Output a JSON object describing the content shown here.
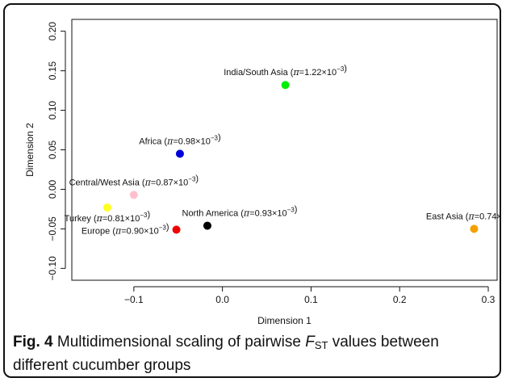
{
  "chart_data": {
    "type": "scatter",
    "xlabel": "Dimension 1",
    "ylabel": "Dimension 2",
    "xlim": [
      -0.17,
      0.31
    ],
    "ylim": [
      -0.115,
      0.215
    ],
    "x_ticks": [
      -0.1,
      0.0,
      0.1,
      0.2,
      0.3
    ],
    "x_tick_labels": [
      "−0.1",
      "0.0",
      "0.1",
      "0.2",
      "0.3"
    ],
    "y_ticks": [
      -0.1,
      -0.05,
      0.0,
      0.05,
      0.1,
      0.15,
      0.2
    ],
    "y_tick_labels": [
      "−0.10",
      "−0.05",
      "0.00",
      "0.05",
      "0.10",
      "0.15",
      "0.20"
    ],
    "grid": false,
    "points": [
      {
        "name": "India/South Asia",
        "pi": "1.22",
        "x": 0.071,
        "y": 0.132,
        "color": "#00ee00",
        "label_pos": "above"
      },
      {
        "name": "Africa",
        "pi": "0.98",
        "x": -0.048,
        "y": 0.045,
        "color": "#0000dd",
        "label_pos": "above"
      },
      {
        "name": "Central/West Asia",
        "pi": "0.87",
        "x": -0.1,
        "y": -0.007,
        "color": "#ffc0cb",
        "label_pos": "above"
      },
      {
        "name": "Turkey",
        "pi": "0.81",
        "x": -0.13,
        "y": -0.023,
        "color": "#ffff22",
        "label_pos": "below"
      },
      {
        "name": "North America",
        "pi": "0.93",
        "x": -0.017,
        "y": -0.046,
        "color": "#000000",
        "label_pos": "above"
      },
      {
        "name": "Europe",
        "pi": "0.90",
        "x": -0.052,
        "y": -0.051,
        "color": "#ee0000",
        "label_pos": "left"
      },
      {
        "name": "East Asia",
        "pi": "0.74",
        "x": 0.284,
        "y": -0.05,
        "color": "#f5a000",
        "label_pos": "above"
      }
    ]
  },
  "caption": {
    "fig_label": "Fig. 4",
    "text_before": " Multidimensional scaling of pairwise ",
    "f_letter": "F",
    "f_sub": "ST",
    "text_after": " values between different cucumber groups"
  }
}
